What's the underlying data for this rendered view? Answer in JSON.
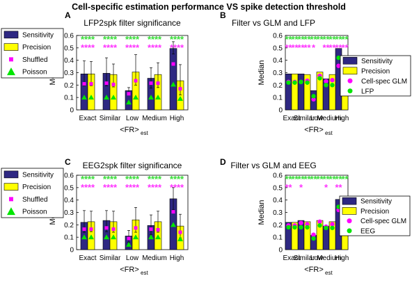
{
  "figure_title": "Cell-specific estimation performance VS spike detection threshold",
  "colors": {
    "sensitivity": "#2e2882",
    "precision": "#ffff00",
    "magenta": "#ff00ff",
    "green": "#00e600",
    "ann_green": "#33dd33",
    "ann_magenta": "#ff33ff"
  },
  "chart_data": [
    {
      "panel_letter": "A",
      "type": "bar",
      "title": "LFP2spk filter significance",
      "ylabel": "Median",
      "xlabel_main": "<FR>",
      "xlabel_sub": "est",
      "ylim": [
        0,
        0.6
      ],
      "yticks": [
        "0",
        "0.1",
        "0.2",
        "0.3",
        "0.4",
        "0.5",
        "0.6"
      ],
      "categories": [
        "Exact",
        "Similar",
        "Low",
        "Medium",
        "High"
      ],
      "legend": {
        "placement": "top-left",
        "entries": [
          {
            "label": "Sensitivity",
            "kind": "bar",
            "color": "#2e2882"
          },
          {
            "label": "Precision",
            "kind": "bar",
            "color": "#ffff00"
          },
          {
            "label": "Shuffled",
            "kind": "square",
            "color": "#ff00ff"
          },
          {
            "label": "Poisson",
            "kind": "triangle",
            "color": "#00e600"
          }
        ]
      },
      "series": [
        {
          "name": "Sensitivity",
          "values": [
            0.29,
            0.295,
            0.155,
            0.255,
            0.495
          ],
          "err_low": [
            0.195,
            0.195,
            0.13,
            0.175,
            0.45
          ],
          "err_high": [
            0.395,
            0.42,
            0.18,
            0.34,
            0.55
          ]
        },
        {
          "name": "Precision",
          "values": [
            0.29,
            0.285,
            0.305,
            0.285,
            0.235
          ],
          "err_low": [
            0.195,
            0.185,
            0.2,
            0.18,
            0.12
          ],
          "err_high": [
            0.39,
            0.37,
            0.445,
            0.38,
            0.365
          ]
        }
      ],
      "markers": [
        {
          "name": "Shuffled",
          "shape": "square",
          "sensitivity": [
            0.21,
            0.215,
            0.13,
            0.215,
            0.37
          ],
          "precision": [
            0.21,
            0.205,
            0.235,
            0.215,
            0.17
          ]
        },
        {
          "name": "Poisson",
          "shape": "triangle",
          "sensitivity": [
            0.1,
            0.1,
            0.06,
            0.1,
            0.205
          ],
          "precision": [
            0.1,
            0.1,
            0.1,
            0.1,
            0.09
          ]
        }
      ],
      "significance": {
        "row1": {
          "color": "green",
          "marks": [
            "**",
            "**",
            "**",
            "**",
            "**",
            "**",
            "**",
            "**",
            "**",
            "**"
          ]
        },
        "row2": {
          "color": "magenta",
          "marks": [
            "**",
            "**",
            "**",
            "**",
            "**",
            "**",
            "**",
            "**",
            "**",
            "**"
          ]
        }
      }
    },
    {
      "panel_letter": "B",
      "type": "bar",
      "title": "Filter vs GLM and LFP",
      "ylabel": "Median",
      "xlabel_main": "<FR>",
      "xlabel_sub": "est",
      "ylim": [
        0,
        0.6
      ],
      "yticks": [
        "0",
        "0.1",
        "0.2",
        "0.3",
        "0.4",
        "0.5",
        "0.6"
      ],
      "categories": [
        "Exact",
        "Similar",
        "Low",
        "Medium",
        "High"
      ],
      "legend": {
        "placement": "outside-right",
        "entries": [
          {
            "label": "Sensitivity",
            "kind": "bar",
            "color": "#2e2882"
          },
          {
            "label": "Precision",
            "kind": "bar",
            "color": "#ffff00"
          },
          {
            "label": "Cell-spec GLM",
            "kind": "circle",
            "color": "#ff00ff"
          },
          {
            "label": "LFP",
            "kind": "circle",
            "color": "#00e600"
          }
        ]
      },
      "series": [
        {
          "name": "Sensitivity",
          "values": [
            0.29,
            0.29,
            0.155,
            0.25,
            0.495
          ]
        },
        {
          "name": "Precision",
          "values": [
            0.29,
            0.285,
            0.305,
            0.285,
            0.2
          ]
        }
      ],
      "markers": [
        {
          "name": "Cell-spec GLM",
          "shape": "circle",
          "sensitivity": [
            0.225,
            0.225,
            0.085,
            0.23,
            0.355
          ],
          "precision": [
            0.225,
            0.235,
            0.275,
            0.24,
            0.175
          ]
        },
        {
          "name": "LFP",
          "shape": "circle",
          "sensitivity": [
            0.22,
            0.225,
            0.11,
            0.2,
            0.42
          ],
          "precision": [
            0.22,
            0.22,
            0.255,
            0.2,
            0.185
          ]
        }
      ],
      "significance": {
        "row1": {
          "color": "green",
          "marks": [
            "**",
            "**",
            "**",
            "**",
            "**",
            "**",
            "**",
            "**",
            "**",
            "**"
          ]
        },
        "row2": {
          "color": "magenta",
          "marks": [
            "**",
            "**",
            "**",
            "**",
            "*",
            "",
            "**",
            "**",
            "**",
            "**"
          ]
        }
      }
    },
    {
      "panel_letter": "C",
      "type": "bar",
      "title": "EEG2spk filter significance",
      "ylabel": "Median",
      "xlabel_main": "<FR>",
      "xlabel_sub": "est",
      "ylim": [
        0,
        0.6
      ],
      "yticks": [
        "0",
        "0.1",
        "0.2",
        "0.3",
        "0.4",
        "0.5",
        "0.6"
      ],
      "categories": [
        "Exact",
        "Similar",
        "Low",
        "Medium",
        "High"
      ],
      "legend": {
        "placement": "top-left",
        "entries": [
          {
            "label": "Sensitivity",
            "kind": "bar",
            "color": "#2e2882"
          },
          {
            "label": "Precision",
            "kind": "bar",
            "color": "#ffff00"
          },
          {
            "label": "Shuffled",
            "kind": "square",
            "color": "#ff00ff"
          },
          {
            "label": "Poisson",
            "kind": "triangle",
            "color": "#00e600"
          }
        ]
      },
      "series": [
        {
          "name": "Sensitivity",
          "values": [
            0.22,
            0.235,
            0.11,
            0.195,
            0.41
          ],
          "err_low": [
            0.14,
            0.145,
            0.06,
            0.12,
            0.32
          ],
          "err_high": [
            0.315,
            0.315,
            0.155,
            0.28,
            0.5
          ]
        },
        {
          "name": "Precision",
          "values": [
            0.225,
            0.225,
            0.24,
            0.225,
            0.19
          ],
          "err_low": [
            0.145,
            0.14,
            0.14,
            0.14,
            0.095
          ],
          "err_high": [
            0.31,
            0.31,
            0.34,
            0.31,
            0.285
          ]
        }
      ],
      "markers": [
        {
          "name": "Shuffled",
          "shape": "square",
          "sensitivity": [
            0.165,
            0.175,
            0.09,
            0.165,
            0.305
          ],
          "precision": [
            0.165,
            0.165,
            0.175,
            0.16,
            0.14
          ]
        },
        {
          "name": "Poisson",
          "shape": "triangle",
          "sensitivity": [
            0.1,
            0.1,
            0.04,
            0.1,
            0.2
          ],
          "precision": [
            0.1,
            0.1,
            0.1,
            0.1,
            0.085
          ]
        }
      ],
      "significance": {
        "row1": {
          "color": "green",
          "marks": [
            "**",
            "**",
            "**",
            "**",
            "**",
            "**",
            "**",
            "**",
            "**",
            "**"
          ]
        },
        "row2": {
          "color": "magenta",
          "marks": [
            "**",
            "**",
            "**",
            "**",
            "**",
            "**",
            "**",
            "**",
            "**",
            "**"
          ]
        }
      }
    },
    {
      "panel_letter": "D",
      "type": "bar",
      "title": "Filter vs GLM and EEG",
      "ylabel": "Median",
      "xlabel_main": "<FR>",
      "xlabel_sub": "est",
      "ylim": [
        0,
        0.6
      ],
      "yticks": [
        "0",
        "0.1",
        "0.2",
        "0.3",
        "0.4",
        "0.5",
        "0.6"
      ],
      "categories": [
        "Exact",
        "Similar",
        "Low",
        "Medium",
        "High"
      ],
      "legend": {
        "placement": "outside-right",
        "entries": [
          {
            "label": "Sensitivity",
            "kind": "bar",
            "color": "#2e2882"
          },
          {
            "label": "Precision",
            "kind": "bar",
            "color": "#ffff00"
          },
          {
            "label": "Cell-spec GLM",
            "kind": "circle",
            "color": "#ff00ff"
          },
          {
            "label": "EEG",
            "kind": "circle",
            "color": "#00e600"
          }
        ]
      },
      "series": [
        {
          "name": "Sensitivity",
          "values": [
            0.22,
            0.235,
            0.115,
            0.19,
            0.405
          ]
        },
        {
          "name": "Precision",
          "values": [
            0.22,
            0.225,
            0.235,
            0.225,
            0.19
          ]
        }
      ],
      "markers": [
        {
          "name": "Cell-spec GLM",
          "shape": "circle",
          "sensitivity": [
            0.195,
            0.215,
            0.12,
            0.185,
            0.32
          ],
          "precision": [
            0.195,
            0.205,
            0.225,
            0.205,
            0.165
          ]
        },
        {
          "name": "EEG",
          "shape": "circle",
          "sensitivity": [
            0.18,
            0.18,
            0.09,
            0.175,
            0.345
          ],
          "precision": [
            0.18,
            0.18,
            0.195,
            0.175,
            0.16
          ]
        }
      ],
      "significance": {
        "row1": {
          "color": "green",
          "marks": [
            "**",
            "**",
            "**",
            "**",
            "**",
            "**",
            "**",
            "**",
            "**",
            "**"
          ]
        },
        "row2": {
          "color": "magenta",
          "marks": [
            "**",
            "",
            "*",
            "",
            "",
            "",
            "*",
            "",
            "**",
            ""
          ]
        }
      }
    }
  ]
}
